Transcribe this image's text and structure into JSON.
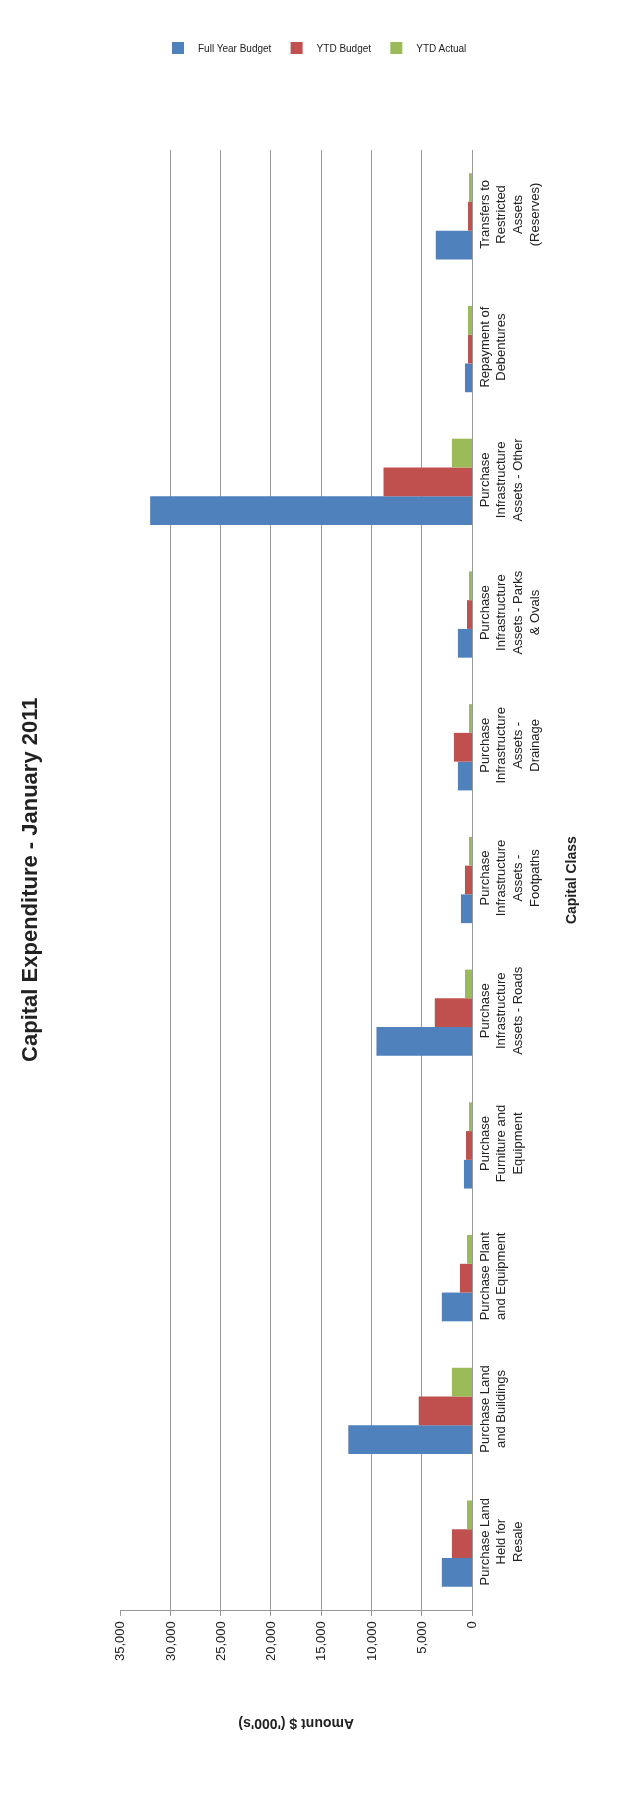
{
  "chart_data": {
    "type": "bar",
    "orientation": "horizontal",
    "title": "Capital Expenditure - January 2011",
    "xlabel": "Amount $ ('000's)",
    "ylabel": "Capital Class",
    "categories": [
      "Transfers to Restricted Assets (Reserves)",
      "Repayment of Debentures",
      "Purchase Infrastructure Assets - Other",
      "Purchase Infrastructure Assets - Parks & Ovals",
      "Purchase Infrastructure Assets - Drainage",
      "Purchase Infrastructure Assets - Footpaths",
      "Purchase Infrastructure Assets - Roads",
      "Purchase Furniture and Equipment",
      "Purchase Plant and Equipment",
      "Purchase Land and Buildings",
      "Purchase Land Held for Resale"
    ],
    "series": [
      {
        "name": "Full Year Budget",
        "color": "#4f81bd",
        "values": [
          3600,
          700,
          32000,
          1400,
          1400,
          1100,
          9500,
          800,
          3000,
          12300,
          3000
        ]
      },
      {
        "name": "YTD Budget",
        "color": "#c0504d",
        "values": [
          400,
          400,
          8800,
          500,
          1800,
          700,
          3700,
          600,
          1200,
          5300,
          2000
        ]
      },
      {
        "name": "YTD Actual",
        "color": "#9bbb59",
        "values": [
          300,
          400,
          2000,
          300,
          300,
          300,
          700,
          300,
          500,
          2000,
          500
        ]
      }
    ],
    "xlim": [
      35000,
      0
    ],
    "xticks": [
      {
        "value": 0,
        "label": "0"
      },
      {
        "value": 5000,
        "label": "5,000"
      },
      {
        "value": 10000,
        "label": "10,000"
      },
      {
        "value": 15000,
        "label": "15,000"
      },
      {
        "value": 20000,
        "label": "20,000"
      },
      {
        "value": 25000,
        "label": "25,000"
      },
      {
        "value": 30000,
        "label": "30,000"
      },
      {
        "value": 35000,
        "label": "35,000"
      }
    ],
    "grid": "x",
    "legend": "top right"
  }
}
